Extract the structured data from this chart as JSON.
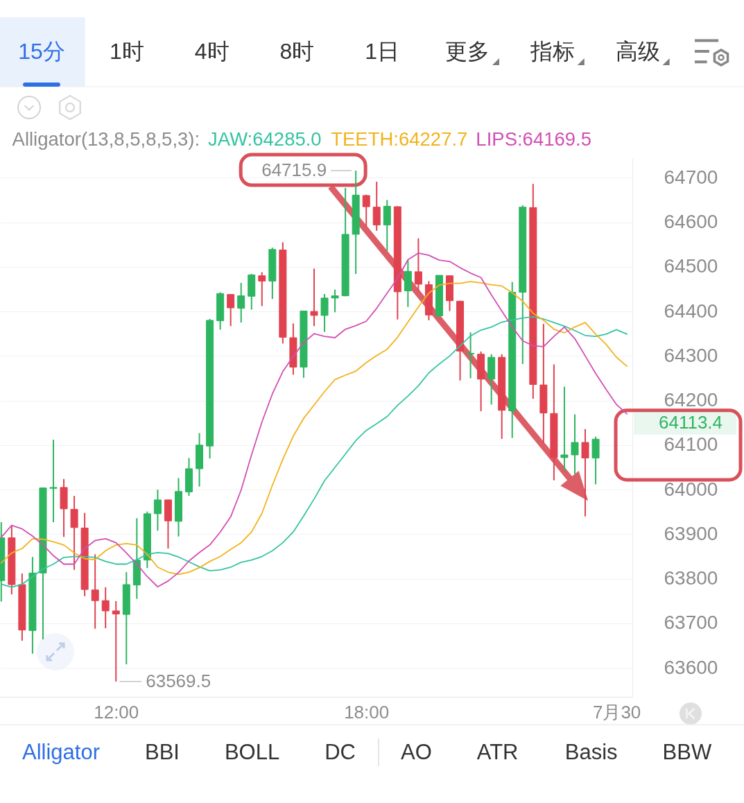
{
  "chart_data": {
    "type": "candlestick",
    "legend_title": "Alligator(13,8,5,8,5,3):",
    "legend": "top right",
    "grid": "y",
    "xlim": [
      9.22,
      24.38
    ],
    "xticks": [
      {
        "value": 12,
        "label": "12:00"
      },
      {
        "value": 18,
        "label": "18:00"
      },
      {
        "value": 24,
        "label": "7月30"
      }
    ],
    "ylim": [
      63535,
      64744
    ],
    "yticks": [
      63600,
      63700,
      63800,
      63900,
      64000,
      64100,
      64200,
      64300,
      64400,
      64500,
      64600,
      64700
    ],
    "x": [
      9.25,
      9.5,
      9.75,
      10.0,
      10.25,
      10.5,
      10.75,
      11.0,
      11.25,
      11.5,
      11.75,
      12.0,
      12.25,
      12.5,
      12.75,
      13.0,
      13.25,
      13.5,
      13.75,
      14.0,
      14.25,
      14.5,
      14.75,
      15.0,
      15.25,
      15.5,
      15.75,
      16.0,
      16.25,
      16.5,
      16.75,
      17.0,
      17.25,
      17.5,
      17.75,
      18.0,
      18.25,
      18.5,
      18.75,
      19.0,
      19.25,
      19.5,
      19.75,
      20.0,
      20.25,
      20.5,
      20.75,
      21.0,
      21.25,
      21.5,
      21.75,
      22.0,
      22.25,
      22.5,
      22.75,
      23.0,
      23.25,
      23.5
    ],
    "ohlc": [
      [
        63796,
        63927,
        63749,
        63892
      ],
      [
        63892,
        63920,
        63765,
        63787
      ],
      [
        63787,
        63812,
        63661,
        63685
      ],
      [
        63684,
        63849,
        63632,
        63813
      ],
      [
        63813,
        64004,
        63664,
        64004
      ],
      [
        64003,
        64112,
        63927,
        64005
      ],
      [
        64005,
        64024,
        63894,
        63957
      ],
      [
        63956,
        63986,
        63820,
        63915
      ],
      [
        63914,
        63948,
        63761,
        63776
      ],
      [
        63775,
        63855,
        63688,
        63751
      ],
      [
        63751,
        63781,
        63689,
        63728
      ],
      [
        63728,
        63750,
        63569.5,
        63721
      ],
      [
        63720,
        63815,
        63608,
        63787
      ],
      [
        63786,
        63936,
        63755,
        63842
      ],
      [
        63842,
        63951,
        63824,
        63946
      ],
      [
        63946,
        64000,
        63908,
        63977
      ],
      [
        63977,
        63978,
        63868,
        63930
      ],
      [
        63929,
        64026,
        63895,
        63996
      ],
      [
        63995,
        64071,
        63986,
        64047
      ],
      [
        64047,
        64127,
        64007,
        64100
      ],
      [
        64098,
        64383,
        64070,
        64380
      ],
      [
        64379,
        64443,
        64359,
        64440
      ],
      [
        64438,
        64439,
        64367,
        64408
      ],
      [
        64407,
        64464,
        64375,
        64435
      ],
      [
        64434,
        64484,
        64404,
        64482
      ],
      [
        64480,
        64488,
        64412,
        64468
      ],
      [
        64468,
        64543,
        64428,
        64539
      ],
      [
        64538,
        64555,
        64328,
        64342
      ],
      [
        64341,
        64373,
        64258,
        64275
      ],
      [
        64275,
        64401,
        64251,
        64401
      ],
      [
        64400,
        64496,
        64367,
        64391
      ],
      [
        64391,
        64439,
        64354,
        64430
      ],
      [
        64430,
        64449,
        64398,
        64435
      ],
      [
        64435,
        64677,
        64434,
        64573
      ],
      [
        64573,
        64715.9,
        64484,
        64661
      ],
      [
        64660,
        64662,
        64591,
        64635
      ],
      [
        64634,
        64691,
        64581,
        64594
      ],
      [
        64594,
        64650,
        64536,
        64636
      ],
      [
        64635,
        64636,
        64382,
        64444
      ],
      [
        64446,
        64515,
        64410,
        64490
      ],
      [
        64489,
        64564,
        64446,
        64461
      ],
      [
        64460,
        64468,
        64380,
        64392
      ],
      [
        64390,
        64481,
        64387,
        64481
      ],
      [
        64480,
        64481,
        64401,
        64424
      ],
      [
        64423,
        64424,
        64245,
        64311
      ],
      [
        64304,
        64353,
        64250,
        64306
      ],
      [
        64304,
        64310,
        64176,
        64248
      ],
      [
        64248,
        64304,
        64191,
        64297
      ],
      [
        64297,
        64304,
        64114,
        64178
      ],
      [
        64177,
        64466,
        64116,
        64443
      ],
      [
        64443,
        64638,
        64282,
        64634
      ],
      [
        64633,
        64686,
        64204,
        64236
      ],
      [
        64235,
        64372,
        64105,
        64172
      ],
      [
        64171,
        64281,
        64021,
        64072
      ],
      [
        64072,
        64231,
        64041,
        64078
      ],
      [
        64078,
        64169,
        64035,
        64106
      ],
      [
        64106,
        64136,
        63940,
        64071
      ],
      [
        64071,
        64119,
        64012,
        64113.4
      ]
    ],
    "colors": [
      "#2db560",
      "#e0424f",
      "#e0424f",
      "#2db560",
      "#2db560",
      "#2db560",
      "#e0424f",
      "#e0424f",
      "#e0424f",
      "#e0424f",
      "#e0424f",
      "#e0424f",
      "#2db560",
      "#2db560",
      "#2db560",
      "#2db560",
      "#e0424f",
      "#2db560",
      "#2db560",
      "#2db560",
      "#2db560",
      "#2db560",
      "#e0424f",
      "#2db560",
      "#2db560",
      "#e0424f",
      "#2db560",
      "#e0424f",
      "#e0424f",
      "#2db560",
      "#e0424f",
      "#2db560",
      "#2db560",
      "#2db560",
      "#2db560",
      "#e0424f",
      "#e0424f",
      "#2db560",
      "#e0424f",
      "#2db560",
      "#e0424f",
      "#e0424f",
      "#2db560",
      "#e0424f",
      "#e0424f",
      "#2db560",
      "#e0424f",
      "#2db560",
      "#e0424f",
      "#2db560",
      "#2db560",
      "#e0424f",
      "#e0424f",
      "#e0424f",
      "#2db560",
      "#2db560",
      "#e0424f",
      "#2db560"
    ],
    "series": [
      {
        "name": "JAW:64285.0",
        "type": "line",
        "color": "#35c4a2",
        "x": [
          9.25,
          9.5,
          9.75,
          10.0,
          10.25,
          10.5,
          10.75,
          11.0,
          11.25,
          11.5,
          11.75,
          12.0,
          12.25,
          12.5,
          12.75,
          13.0,
          13.25,
          13.5,
          13.75,
          14.0,
          14.25,
          14.5,
          14.75,
          15.0,
          15.25,
          15.5,
          15.75,
          16.0,
          16.25,
          16.5,
          16.75,
          17.0,
          17.25,
          17.5,
          17.75,
          18.0,
          18.25,
          18.5,
          18.75,
          19.0,
          19.25,
          19.5,
          19.75,
          20.0,
          20.25,
          20.5,
          20.75,
          21.0,
          21.25,
          21.5,
          21.75,
          22.0,
          22.25,
          22.5,
          22.75,
          23.0,
          23.25,
          23.5,
          23.75,
          24.0,
          24.25
        ],
        "values": [
          63788,
          63781,
          63788,
          63805,
          63822,
          63833,
          63848,
          63850,
          63850,
          63848,
          63839,
          63833,
          63833,
          63843,
          63855,
          63859,
          63857,
          63849,
          63838,
          63827,
          63818,
          63820,
          63826,
          63837,
          63842,
          63850,
          63863,
          63881,
          63905,
          63941,
          63979,
          64020,
          64050,
          64080,
          64110,
          64133,
          64148,
          64164,
          64189,
          64210,
          64233,
          64262,
          64282,
          64300,
          64323,
          64345,
          64358,
          64365,
          64376,
          64381,
          64385,
          64388,
          64383,
          64375,
          64367,
          64357,
          64346,
          64344,
          64349,
          64359,
          64349
        ]
      },
      {
        "name": "TEETH:64227.7",
        "type": "line",
        "color": "#f2b31c",
        "x": [
          9.25,
          9.5,
          9.75,
          10.0,
          10.25,
          10.5,
          10.75,
          11.0,
          11.25,
          11.5,
          11.75,
          12.0,
          12.25,
          12.5,
          12.75,
          13.0,
          13.25,
          13.5,
          13.75,
          14.0,
          14.25,
          14.5,
          14.75,
          15.0,
          15.25,
          15.5,
          15.75,
          16.0,
          16.25,
          16.5,
          16.75,
          17.0,
          17.25,
          17.5,
          17.75,
          18.0,
          18.25,
          18.5,
          18.75,
          19.0,
          19.25,
          19.5,
          19.75,
          20.0,
          20.25,
          20.5,
          20.75,
          21.0,
          21.25,
          21.5,
          21.75,
          22.0,
          22.25,
          22.5,
          22.75,
          23.0,
          23.25,
          23.5,
          23.75,
          24.0,
          24.25
        ],
        "values": [
          63836,
          63858,
          63868,
          63890,
          63889,
          63883,
          63876,
          63858,
          63845,
          63843,
          63863,
          63876,
          63879,
          63876,
          63855,
          63826,
          63815,
          63810,
          63815,
          63825,
          63839,
          63850,
          63866,
          63881,
          63905,
          63947,
          64010,
          64068,
          64120,
          64160,
          64190,
          64220,
          64247,
          64257,
          64266,
          64285,
          64301,
          64315,
          64342,
          64376,
          64410,
          64441,
          64459,
          64463,
          64463,
          64467,
          64464,
          64460,
          64457,
          64442,
          64423,
          64396,
          64380,
          64360,
          64352,
          64365,
          64375,
          64349,
          64326,
          64297,
          64277
        ]
      },
      {
        "name": "LIPS:64169.5",
        "type": "line",
        "color": "#d24fb4",
        "x": [
          9.25,
          9.5,
          9.75,
          10.0,
          10.25,
          10.5,
          10.75,
          11.0,
          11.25,
          11.5,
          11.75,
          12.0,
          12.25,
          12.5,
          12.75,
          13.0,
          13.25,
          13.5,
          13.75,
          14.0,
          14.25,
          14.5,
          14.75,
          15.0,
          15.25,
          15.5,
          15.75,
          16.0,
          16.25,
          16.5,
          16.75,
          17.0,
          17.25,
          17.5,
          17.75,
          18.0,
          18.25,
          18.5,
          18.75,
          19.0,
          19.25,
          19.5,
          19.75,
          20.0,
          20.25,
          20.5,
          20.75,
          21.0,
          21.25,
          21.5,
          21.75,
          22.0,
          22.25,
          22.5,
          22.75,
          23.0,
          23.25,
          23.5,
          23.75,
          24.0,
          24.25
        ],
        "values": [
          63893,
          63920,
          63912,
          63896,
          63876,
          63852,
          63833,
          63833,
          63868,
          63886,
          63890,
          63881,
          63858,
          63833,
          63805,
          63782,
          63795,
          63814,
          63840,
          63859,
          63876,
          63905,
          63939,
          63999,
          64078,
          64152,
          64215,
          64265,
          64299,
          64330,
          64350,
          64344,
          64341,
          64360,
          64368,
          64378,
          64407,
          64441,
          64474,
          64516,
          64531,
          64526,
          64515,
          64512,
          64498,
          64486,
          64476,
          64437,
          64401,
          64365,
          64334,
          64323,
          64321,
          64344,
          64365,
          64339,
          64300,
          64261,
          64225,
          64191,
          64170
        ]
      }
    ],
    "annotations": [
      "15分",
      "1时",
      "4时",
      "8时",
      "1日",
      "更多",
      "指标",
      "高级",
      "Alligator",
      "BBI",
      "BOLL",
      "DC",
      "AO",
      "ATR",
      "Basis",
      "BBW",
      "64113.4",
      {
        "text": "64715.9",
        "x": 17.75,
        "y": 64715.9
      },
      {
        "text": "63569.5",
        "x": 12.0,
        "y": 63569.5
      }
    ]
  }
}
